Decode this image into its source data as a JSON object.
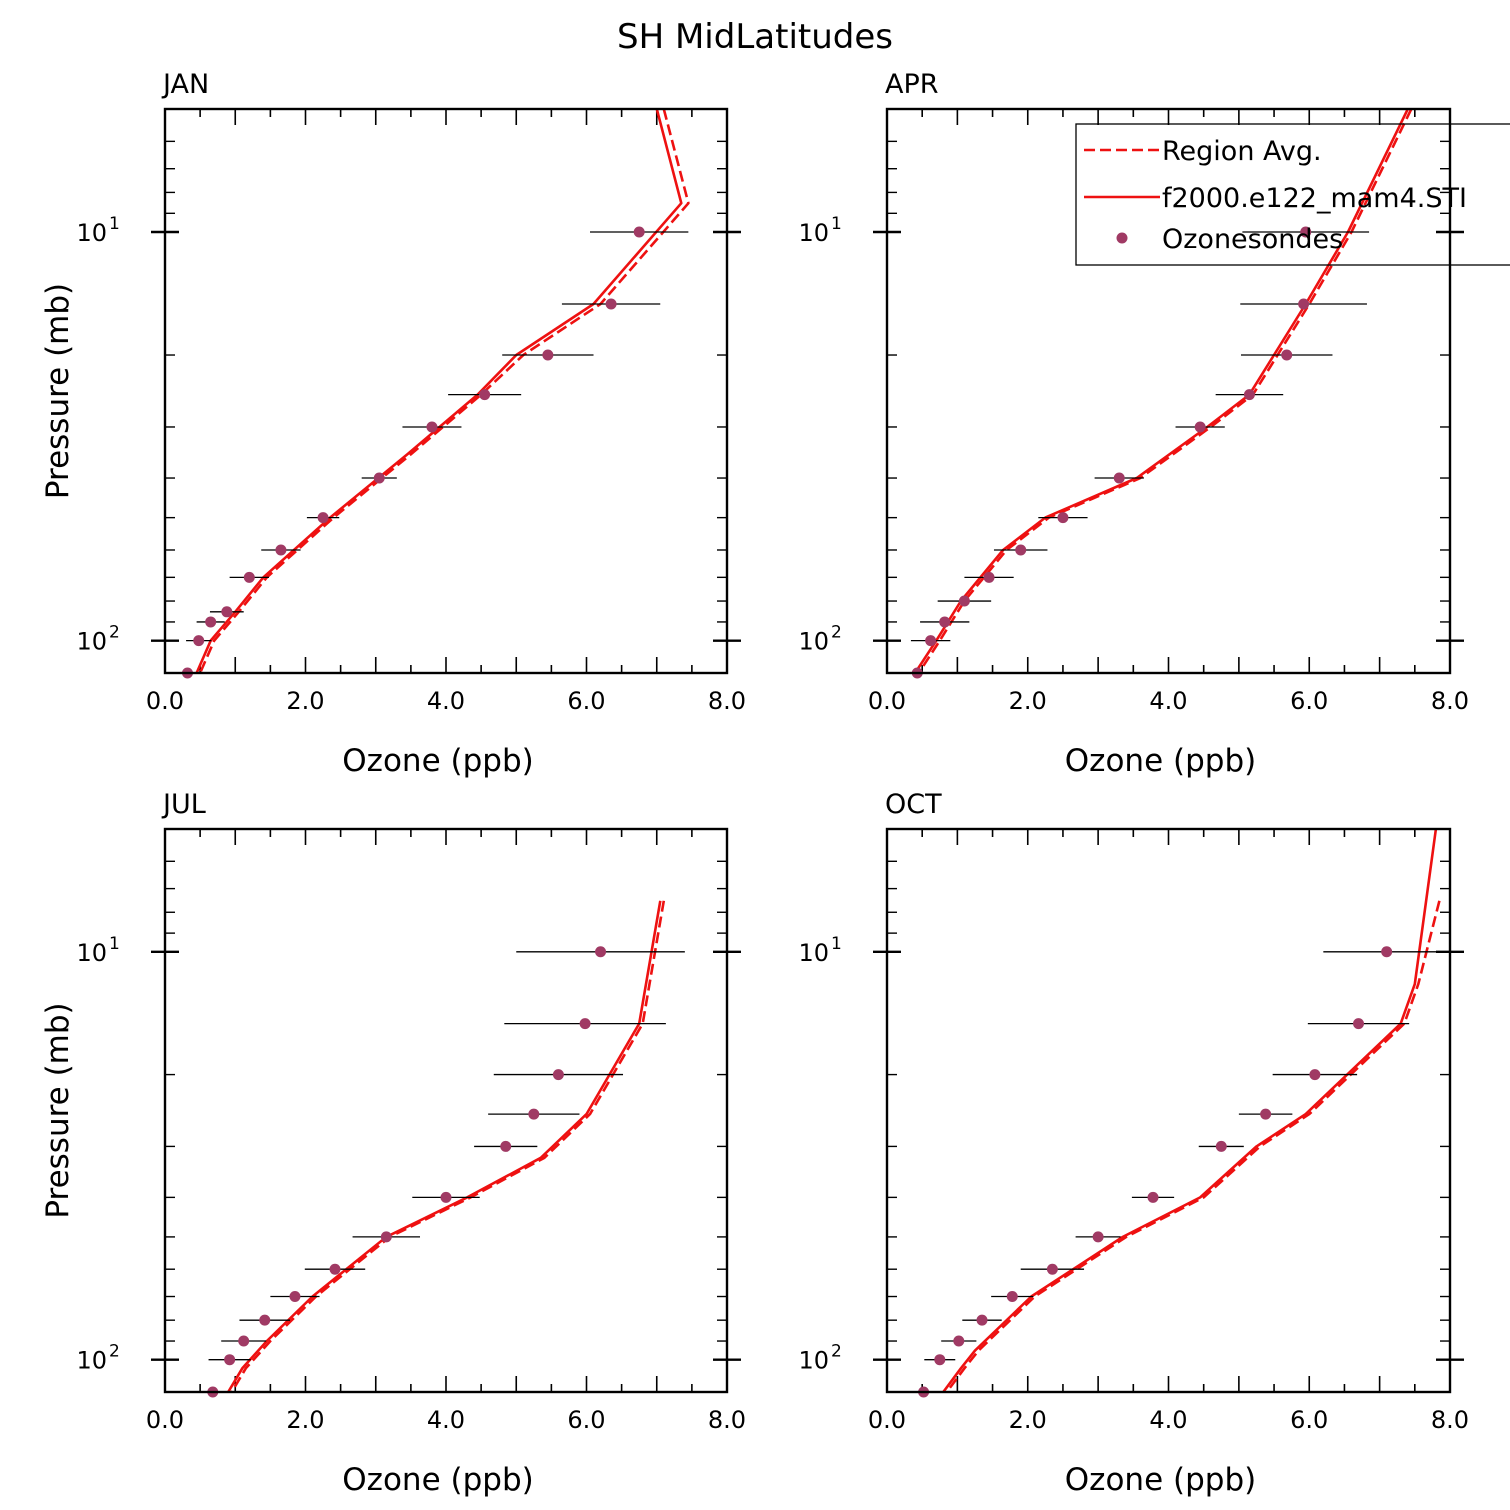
{
  "figure": {
    "title": "SH MidLatitudes"
  },
  "legend": {
    "entries": [
      {
        "label": "Region Avg.",
        "style": "dashed"
      },
      {
        "label": "f2000.e122_mam4.STI",
        "style": "solid"
      },
      {
        "label": "Ozonesondes",
        "style": "marker"
      }
    ]
  },
  "colors": {
    "model": "#ee1111",
    "obs": "#a03a64",
    "frame": "#000000"
  },
  "chart_data": [
    {
      "type": "line",
      "title": "JAN",
      "xlabel": "Ozone (ppb)",
      "ylabel": "Pressure (mb)",
      "xlim": [
        0,
        8
      ],
      "ylim": [
        120,
        5
      ],
      "yscale": "log",
      "xticks": [
        "0.0",
        "2.0",
        "4.0",
        "6.0",
        "8.0"
      ],
      "yticks": [
        "10",
        "10"
      ],
      "ytick_exponents": [
        "1",
        "2"
      ],
      "ytick_values": [
        10,
        100
      ],
      "series": [
        {
          "name": "Region Avg.",
          "style": "dashed",
          "x": [
            7.1,
            7.45,
            6.2,
            5.1,
            4.5,
            3.5,
            2.4,
            1.45,
            1.05,
            0.7,
            0.5
          ],
          "y": [
            5,
            8.5,
            15,
            20,
            25,
            35,
            50,
            70,
            85,
            100,
            120
          ]
        },
        {
          "name": "f2000.e122_mam4.STI",
          "style": "solid",
          "x": [
            7.0,
            7.35,
            6.1,
            5.0,
            4.45,
            3.45,
            2.35,
            1.4,
            1.0,
            0.65,
            0.45
          ],
          "y": [
            5,
            8.5,
            15,
            20,
            25,
            35,
            50,
            70,
            85,
            100,
            120
          ]
        },
        {
          "name": "Ozonesondes",
          "style": "marker",
          "y": [
            10,
            15,
            20,
            25,
            30,
            40,
            50,
            60,
            70,
            85,
            90,
            100,
            120
          ],
          "x": [
            6.75,
            6.35,
            5.45,
            4.55,
            3.8,
            3.05,
            2.25,
            1.65,
            1.2,
            0.88,
            0.65,
            0.48,
            0.32
          ],
          "err": [
            0.7,
            0.7,
            0.65,
            0.52,
            0.42,
            0.25,
            0.23,
            0.28,
            0.28,
            0.24,
            0.2,
            0.18,
            0.05
          ]
        }
      ]
    },
    {
      "type": "line",
      "title": "APR",
      "xlabel": "Ozone (ppb)",
      "ylabel": "",
      "xlim": [
        0,
        8
      ],
      "ylim": [
        120,
        5
      ],
      "yscale": "log",
      "xticks": [
        "0.0",
        "2.0",
        "4.0",
        "6.0",
        "8.0"
      ],
      "yticks": [
        "10",
        "10"
      ],
      "ytick_exponents": [
        "1",
        "2"
      ],
      "ytick_values": [
        10,
        100
      ],
      "series": [
        {
          "name": "Region Avg.",
          "style": "dashed",
          "x": [
            7.45,
            6.6,
            6.0,
            5.2,
            4.6,
            3.6,
            2.3,
            1.7,
            1.1,
            0.75,
            0.45
          ],
          "y": [
            5,
            10,
            15,
            25,
            30,
            40,
            50,
            60,
            80,
            100,
            120
          ]
        },
        {
          "name": "f2000.e122_mam4.STI",
          "style": "solid",
          "x": [
            7.4,
            6.55,
            5.95,
            5.15,
            4.55,
            3.55,
            2.25,
            1.65,
            1.05,
            0.7,
            0.4
          ],
          "y": [
            5,
            10,
            15,
            25,
            30,
            40,
            50,
            60,
            80,
            100,
            120
          ]
        },
        {
          "name": "Ozonesondes",
          "style": "marker",
          "y": [
            10,
            15,
            20,
            25,
            30,
            40,
            50,
            60,
            70,
            80,
            90,
            100,
            120
          ],
          "x": [
            5.95,
            5.92,
            5.68,
            5.15,
            4.45,
            3.3,
            2.5,
            1.9,
            1.45,
            1.1,
            0.82,
            0.62,
            0.43
          ],
          "err": [
            0.9,
            0.9,
            0.65,
            0.48,
            0.35,
            0.35,
            0.35,
            0.38,
            0.35,
            0.38,
            0.35,
            0.28,
            0.05
          ]
        }
      ]
    },
    {
      "type": "line",
      "title": "JUL",
      "xlabel": "Ozone (ppb)",
      "ylabel": "Pressure (mb)",
      "xlim": [
        0,
        8
      ],
      "ylim": [
        120,
        5
      ],
      "yscale": "log",
      "xticks": [
        "0.0",
        "2.0",
        "4.0",
        "6.0",
        "8.0"
      ],
      "yticks": [
        "10",
        "10"
      ],
      "ytick_exponents": [
        "1",
        "2"
      ],
      "ytick_values": [
        10,
        100
      ],
      "series": [
        {
          "name": "Region Avg.",
          "style": "dashed",
          "x": [
            7.1,
            6.8,
            6.05,
            5.4,
            4.35,
            3.2,
            2.15,
            1.5,
            1.15,
            0.95
          ],
          "y": [
            7.5,
            15,
            25,
            32,
            40,
            50,
            70,
            90,
            105,
            120
          ]
        },
        {
          "name": "f2000.e122_mam4.STI",
          "style": "solid",
          "x": [
            7.05,
            6.75,
            6.0,
            5.35,
            4.3,
            3.15,
            2.1,
            1.45,
            1.1,
            0.9
          ],
          "y": [
            7.5,
            15,
            25,
            32,
            40,
            50,
            70,
            90,
            105,
            120
          ]
        },
        {
          "name": "Ozonesondes",
          "style": "marker",
          "y": [
            10,
            15,
            20,
            25,
            30,
            40,
            50,
            60,
            70,
            80,
            90,
            100,
            120
          ],
          "x": [
            6.2,
            5.98,
            5.6,
            5.25,
            4.85,
            4.0,
            3.15,
            2.42,
            1.85,
            1.42,
            1.12,
            0.92,
            0.68
          ],
          "err": [
            1.2,
            1.15,
            0.92,
            0.65,
            0.45,
            0.48,
            0.48,
            0.43,
            0.35,
            0.36,
            0.32,
            0.3,
            0.05
          ]
        }
      ]
    },
    {
      "type": "line",
      "title": "OCT",
      "xlabel": "Ozone (ppb)",
      "ylabel": "",
      "xlim": [
        0,
        8
      ],
      "ylim": [
        120,
        5
      ],
      "yscale": "log",
      "xticks": [
        "0.0",
        "2.0",
        "4.0",
        "6.0",
        "8.0"
      ],
      "yticks": [
        "10",
        "10"
      ],
      "ytick_exponents": [
        "1",
        "2"
      ],
      "ytick_values": [
        10,
        100
      ],
      "series": [
        {
          "name": "Region Avg.",
          "style": "dashed",
          "x": [
            7.85,
            7.55,
            7.35,
            6.0,
            5.3,
            4.5,
            3.4,
            2.1,
            1.3,
            1.1,
            0.85
          ],
          "y": [
            7.5,
            12,
            15,
            25,
            30,
            40,
            50,
            70,
            95,
            105,
            120
          ]
        },
        {
          "name": "f2000.e122_mam4.STI",
          "style": "solid",
          "x": [
            7.8,
            7.5,
            7.3,
            5.95,
            5.25,
            4.45,
            3.35,
            2.05,
            1.25,
            1.05,
            0.8
          ],
          "y": [
            5,
            12,
            15,
            25,
            30,
            40,
            50,
            70,
            95,
            105,
            120
          ]
        },
        {
          "name": "Ozonesondes",
          "style": "marker",
          "y": [
            10,
            15,
            20,
            25,
            30,
            40,
            50,
            60,
            70,
            80,
            90,
            100,
            120
          ],
          "x": [
            7.1,
            6.7,
            6.08,
            5.38,
            4.75,
            3.78,
            3.0,
            2.35,
            1.78,
            1.35,
            1.02,
            0.75,
            0.52
          ],
          "err": [
            0.9,
            0.72,
            0.6,
            0.38,
            0.32,
            0.3,
            0.32,
            0.45,
            0.3,
            0.28,
            0.25,
            0.22,
            0.05
          ]
        }
      ]
    }
  ]
}
